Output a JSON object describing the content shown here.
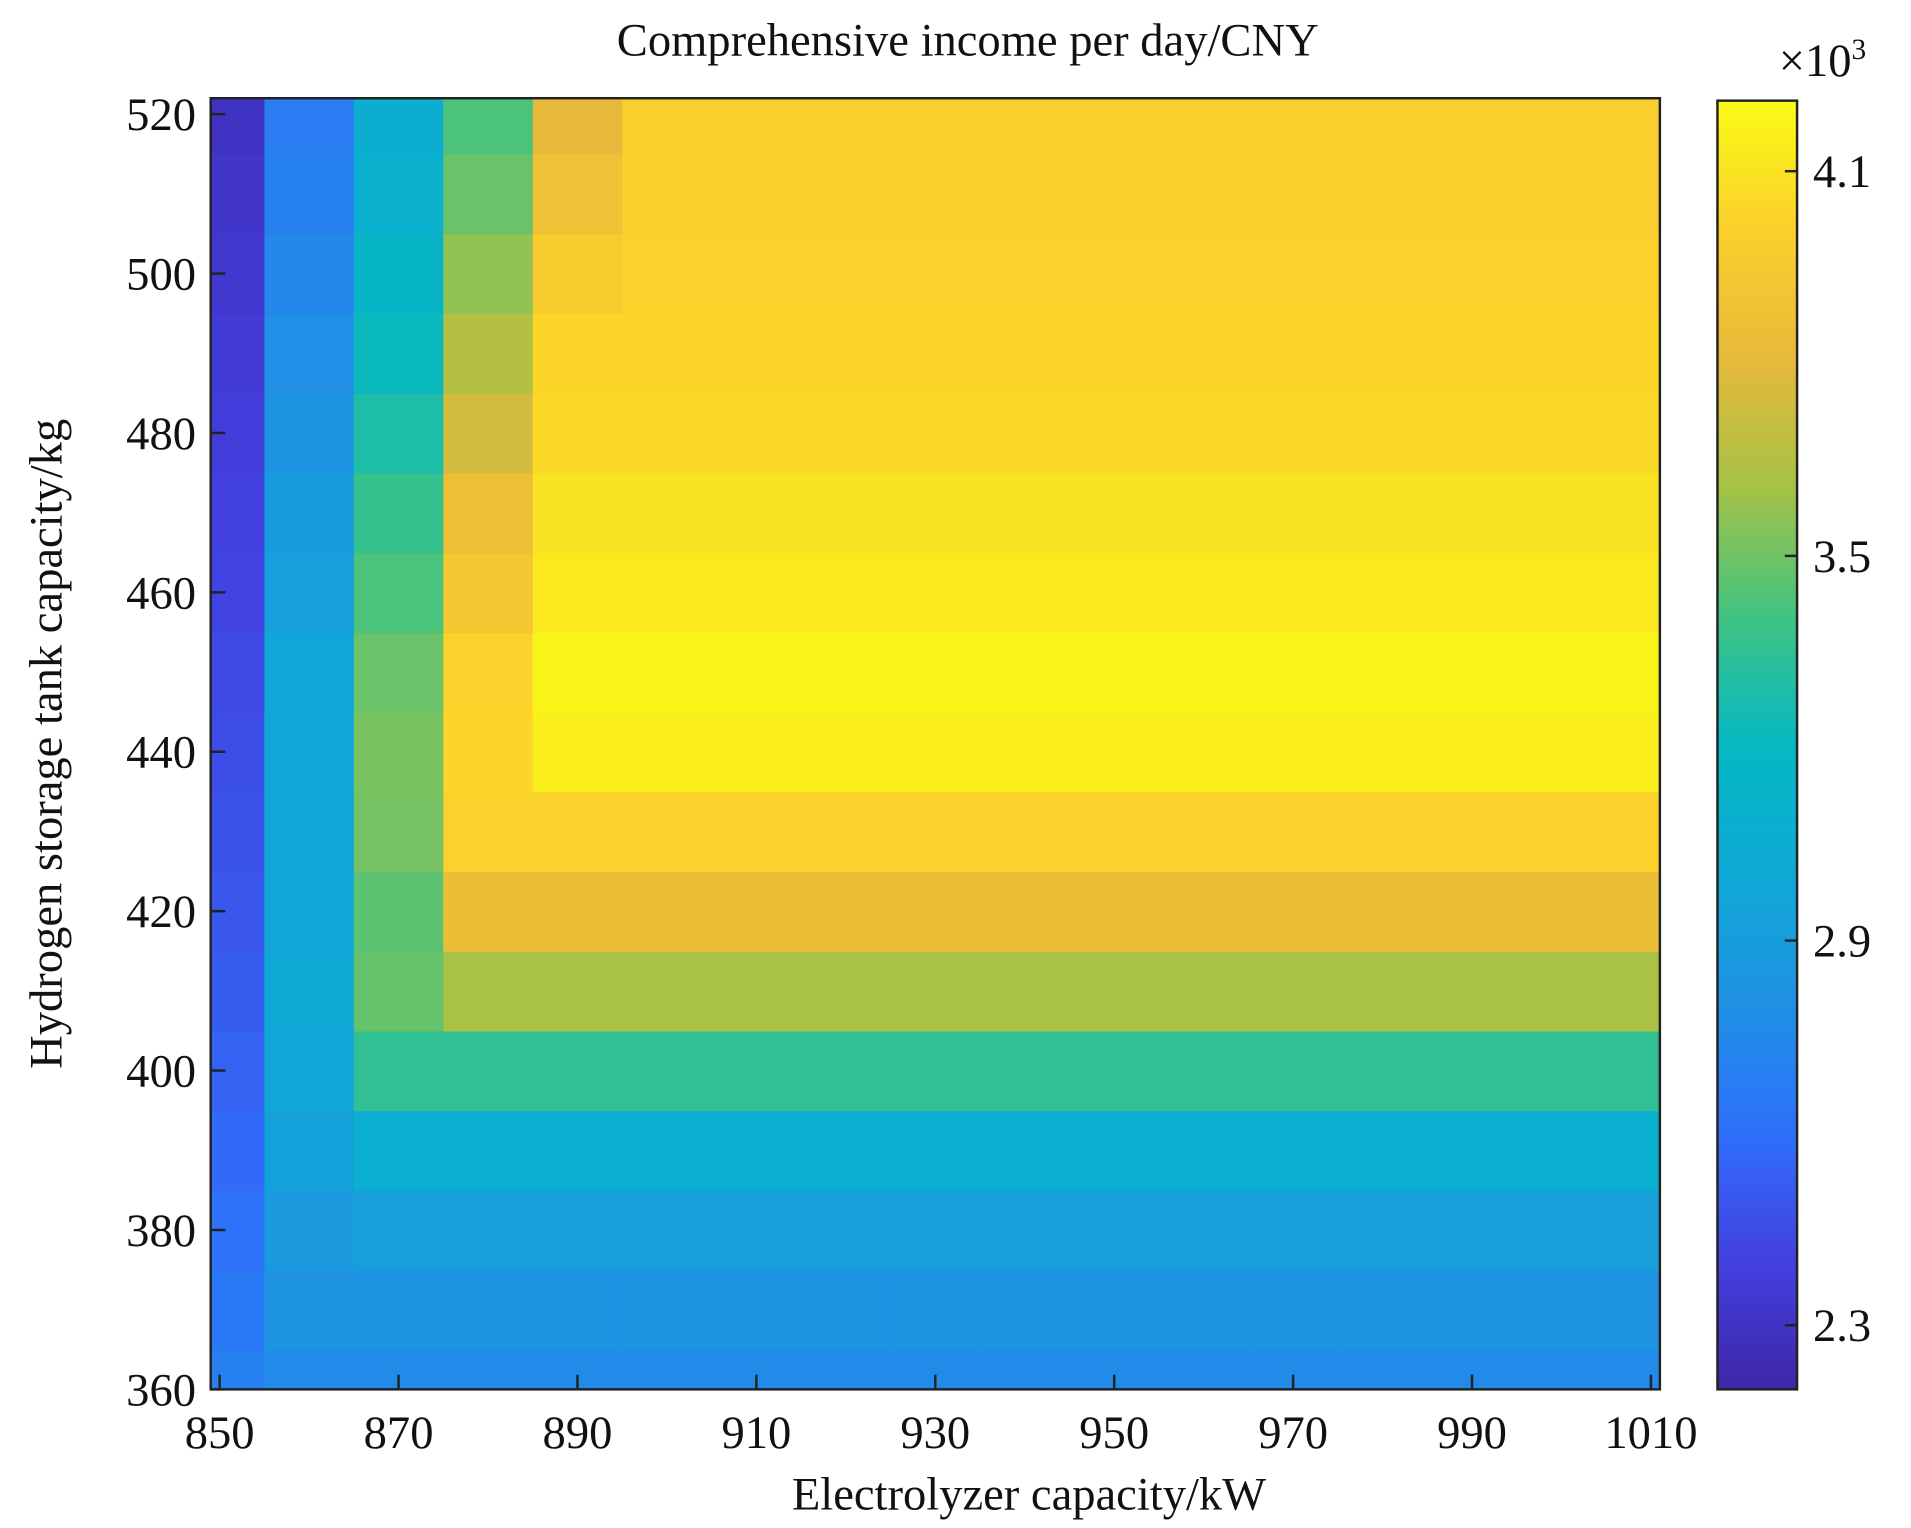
{
  "chart_data": {
    "type": "heatmap",
    "title": "Comprehensive income per day/CNY",
    "x_label": "Electrolyzer capacity/kW",
    "y_label": "Hydrogen storage tank capacity/kg",
    "colorbar_scale": "×10",
    "colorbar_scale_exp": "3",
    "x": [
      850,
      860,
      870,
      880,
      890,
      900,
      910,
      920,
      930,
      940,
      950,
      960,
      970,
      980,
      990,
      1000,
      1010
    ],
    "y": [
      360,
      370,
      380,
      390,
      400,
      410,
      420,
      430,
      440,
      450,
      460,
      470,
      480,
      490,
      500,
      510,
      520
    ],
    "z": [
      [
        2.7,
        2.76,
        2.76,
        2.76,
        2.76,
        2.76,
        2.76,
        2.76,
        2.76,
        2.76,
        2.76,
        2.76,
        2.76,
        2.76,
        2.76,
        2.76,
        2.76
      ],
      [
        2.66,
        2.82,
        2.82,
        2.82,
        2.82,
        2.82,
        2.82,
        2.82,
        2.82,
        2.82,
        2.82,
        2.82,
        2.82,
        2.82,
        2.82,
        2.82,
        2.82
      ],
      [
        2.62,
        2.87,
        2.92,
        2.92,
        2.92,
        2.92,
        2.92,
        2.92,
        2.92,
        2.92,
        2.92,
        2.92,
        2.92,
        2.92,
        2.92,
        2.92,
        2.92
      ],
      [
        2.58,
        2.94,
        3.08,
        3.08,
        3.08,
        3.08,
        3.08,
        3.08,
        3.08,
        3.08,
        3.08,
        3.08,
        3.08,
        3.08,
        3.08,
        3.08,
        3.08
      ],
      [
        2.55,
        2.99,
        3.35,
        3.35,
        3.35,
        3.35,
        3.35,
        3.35,
        3.35,
        3.35,
        3.35,
        3.35,
        3.35,
        3.35,
        3.35,
        3.35,
        3.35
      ],
      [
        2.52,
        3.0,
        3.48,
        3.62,
        3.62,
        3.62,
        3.62,
        3.62,
        3.62,
        3.62,
        3.62,
        3.62,
        3.62,
        3.62,
        3.62,
        3.62,
        3.62
      ],
      [
        2.5,
        2.98,
        3.46,
        3.85,
        3.85,
        3.85,
        3.85,
        3.85,
        3.85,
        3.85,
        3.85,
        3.85,
        3.85,
        3.85,
        3.85,
        3.85,
        3.85
      ],
      [
        2.48,
        2.99,
        3.51,
        4.02,
        4.02,
        4.02,
        4.02,
        4.02,
        4.02,
        4.02,
        4.02,
        4.02,
        4.02,
        4.02,
        4.02,
        4.02,
        4.02
      ],
      [
        2.46,
        2.99,
        3.52,
        4.04,
        4.15,
        4.15,
        4.15,
        4.15,
        4.15,
        4.15,
        4.15,
        4.15,
        4.15,
        4.15,
        4.15,
        4.15,
        4.15
      ],
      [
        2.44,
        2.97,
        3.49,
        4.02,
        4.18,
        4.18,
        4.18,
        4.18,
        4.18,
        4.18,
        4.18,
        4.18,
        4.18,
        4.18,
        4.18,
        4.18,
        4.18
      ],
      [
        2.42,
        2.92,
        3.43,
        3.93,
        4.13,
        4.13,
        4.13,
        4.13,
        4.13,
        4.13,
        4.13,
        4.13,
        4.13,
        4.13,
        4.13,
        4.13,
        4.13
      ],
      [
        2.4,
        2.89,
        3.37,
        3.86,
        4.1,
        4.1,
        4.1,
        4.1,
        4.1,
        4.1,
        4.1,
        4.1,
        4.1,
        4.1,
        4.1,
        4.1,
        4.1
      ],
      [
        2.38,
        2.83,
        3.29,
        3.74,
        4.06,
        4.06,
        4.06,
        4.06,
        4.06,
        4.06,
        4.06,
        4.06,
        4.06,
        4.06,
        4.06,
        4.06,
        4.06
      ],
      [
        2.36,
        2.79,
        3.22,
        3.65,
        4.04,
        4.04,
        4.04,
        4.04,
        4.04,
        4.04,
        4.04,
        4.04,
        4.04,
        4.04,
        4.04,
        4.04,
        4.04
      ],
      [
        2.34,
        2.75,
        3.16,
        3.57,
        3.98,
        4.02,
        4.02,
        4.02,
        4.02,
        4.02,
        4.02,
        4.02,
        4.02,
        4.02,
        4.02,
        4.02,
        4.02
      ],
      [
        2.32,
        2.71,
        3.1,
        3.49,
        3.88,
        4.0,
        4.0,
        4.0,
        4.0,
        4.0,
        4.0,
        4.0,
        4.0,
        4.0,
        4.0,
        4.0,
        4.0
      ],
      [
        2.3,
        2.68,
        3.06,
        3.43,
        3.81,
        4.0,
        4.0,
        4.0,
        4.0,
        4.0,
        4.0,
        4.0,
        4.0,
        4.0,
        4.0,
        4.0,
        4.0
      ]
    ],
    "xlim": [
      849,
      1011
    ],
    "ylim": [
      360,
      522
    ],
    "xticks": [
      850,
      870,
      890,
      910,
      930,
      950,
      970,
      990,
      1010
    ],
    "yticks": [
      360,
      380,
      400,
      420,
      440,
      460,
      480,
      500,
      520
    ],
    "clim": [
      2.2,
      4.21
    ],
    "cticks": [
      2.3,
      2.9,
      3.5,
      4.1
    ],
    "colormap": [
      "#3e26a8",
      "#4340e0",
      "#2f6ffb",
      "#1f91e3",
      "#0fa9d6",
      "#05b8c3",
      "#40c382",
      "#a5c246",
      "#e7b93b",
      "#fbcf2c",
      "#f9fb15"
    ]
  }
}
